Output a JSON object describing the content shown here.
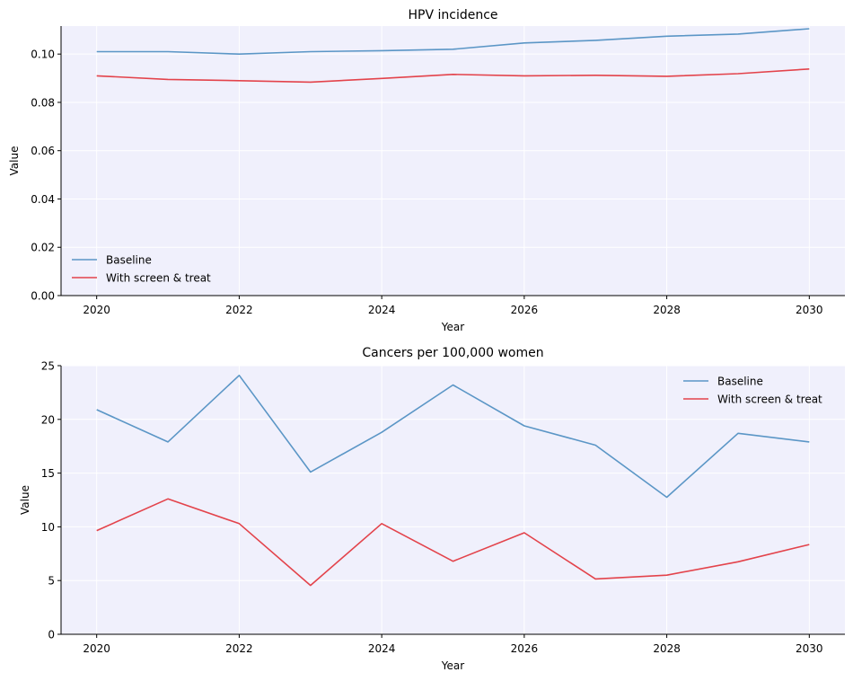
{
  "chart_data": [
    {
      "type": "line",
      "title": "HPV incidence",
      "xlabel": "Year",
      "ylabel": "Value",
      "x": [
        2020,
        2021,
        2022,
        2023,
        2024,
        2025,
        2026,
        2027,
        2028,
        2029,
        2030
      ],
      "xlim": [
        2019.5,
        2030.5
      ],
      "ylim": [
        0,
        0.1116
      ],
      "xticks": [
        2020,
        2022,
        2024,
        2026,
        2028,
        2030
      ],
      "xtick_labels": [
        "2020",
        "2022",
        "2024",
        "2026",
        "2028",
        "2030"
      ],
      "yticks": [
        0,
        0.02,
        0.04,
        0.06,
        0.08,
        0.1
      ],
      "ytick_labels": [
        "0.00",
        "0.02",
        "0.04",
        "0.06",
        "0.08",
        "0.10"
      ],
      "grid": true,
      "legend_position": "lower-left",
      "series": [
        {
          "name": "Baseline",
          "color": "#5b96c6",
          "values": [
            0.101,
            0.101,
            0.1,
            0.101,
            0.1014,
            0.102,
            0.1046,
            0.1057,
            0.1074,
            0.1083,
            0.1105
          ]
        },
        {
          "name": "With screen & treat",
          "color": "#e3434b",
          "values": [
            0.091,
            0.0895,
            0.089,
            0.0884,
            0.0899,
            0.0916,
            0.091,
            0.0912,
            0.0908,
            0.0919,
            0.0938
          ]
        }
      ]
    },
    {
      "type": "line",
      "title": "Cancers per 100,000 women",
      "xlabel": "Year",
      "ylabel": "Value",
      "x": [
        2020,
        2021,
        2022,
        2023,
        2024,
        2025,
        2026,
        2027,
        2028,
        2029,
        2030
      ],
      "xlim": [
        2019.5,
        2030.5
      ],
      "ylim": [
        0,
        25
      ],
      "xticks": [
        2020,
        2022,
        2024,
        2026,
        2028,
        2030
      ],
      "xtick_labels": [
        "2020",
        "2022",
        "2024",
        "2026",
        "2028",
        "2030"
      ],
      "yticks": [
        0,
        5,
        10,
        15,
        20,
        25
      ],
      "ytick_labels": [
        "0",
        "5",
        "10",
        "15",
        "20",
        "25"
      ],
      "grid": true,
      "legend_position": "upper-right",
      "series": [
        {
          "name": "Baseline",
          "color": "#5b96c6",
          "values": [
            20.9,
            17.9,
            24.1,
            15.1,
            18.8,
            23.2,
            19.4,
            17.6,
            12.75,
            18.7,
            17.9
          ]
        },
        {
          "name": "With screen & treat",
          "color": "#e3434b",
          "values": [
            9.65,
            12.6,
            10.3,
            4.55,
            10.3,
            6.8,
            9.45,
            5.15,
            5.5,
            6.75,
            8.35
          ]
        }
      ]
    }
  ],
  "style": {
    "plot_background": "#f0f0fc",
    "grid_color": "#ffffff",
    "axis_color": "#000000"
  }
}
